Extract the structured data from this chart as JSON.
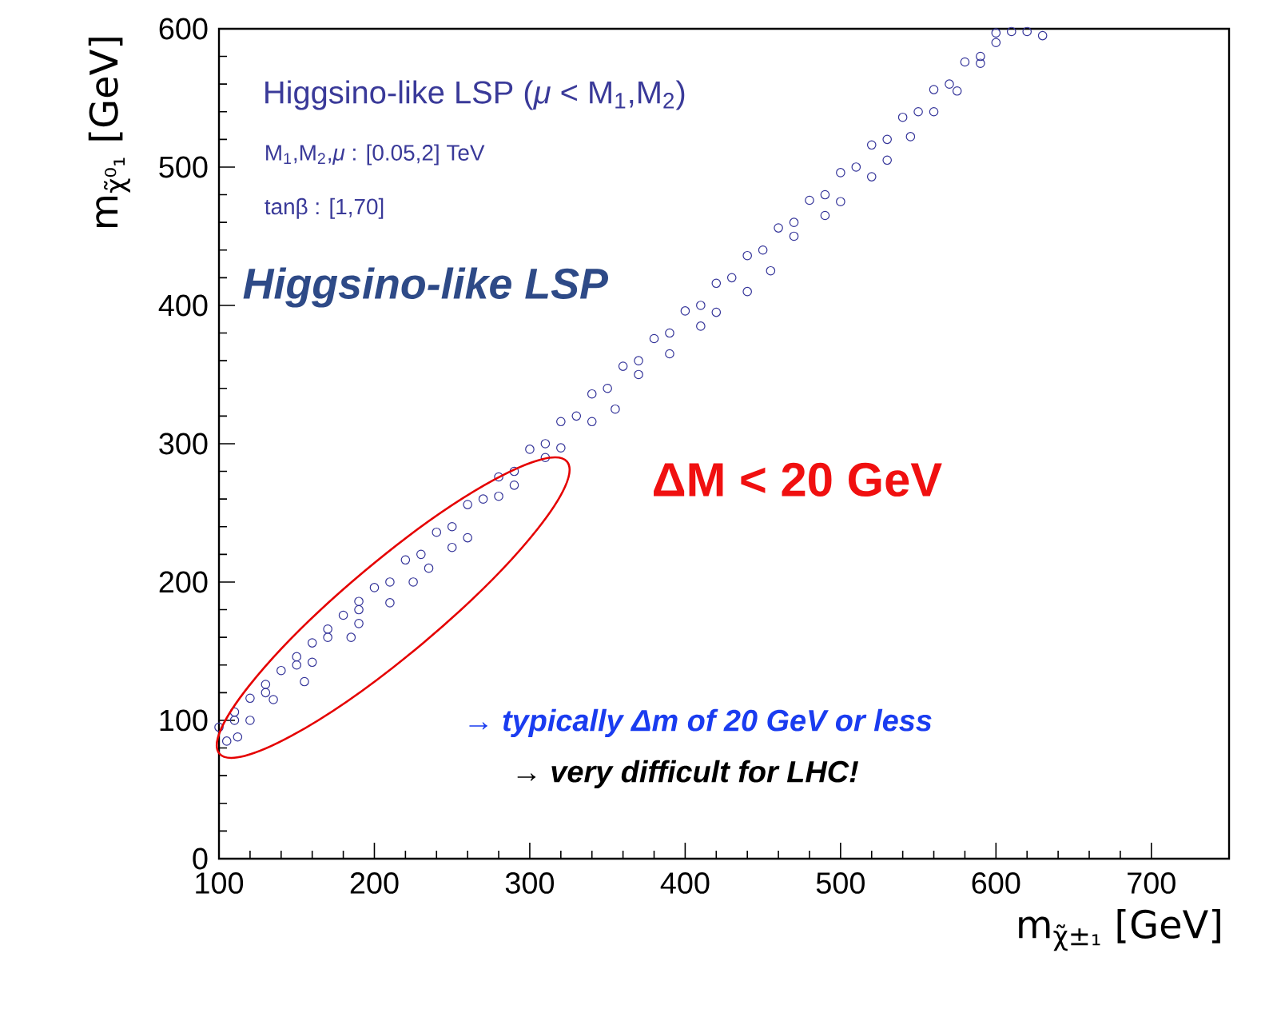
{
  "chart_data": {
    "type": "scatter",
    "xlabel": "m$_{χ̃±₁}$ [GeV]",
    "ylabel": "m$_{χ̃⁰₁}$ [GeV]",
    "x": [
      100,
      110,
      120,
      130,
      140,
      150,
      160,
      170,
      180,
      190,
      200,
      220,
      240,
      260,
      280,
      300,
      320,
      340,
      360,
      380,
      400,
      420,
      440,
      460,
      480,
      500,
      520,
      540,
      560,
      580,
      600,
      110,
      130,
      150,
      170,
      190,
      210,
      230,
      250,
      270,
      290,
      310,
      330,
      350,
      370,
      390,
      410,
      430,
      450,
      470,
      490,
      510,
      530,
      550,
      570,
      590,
      105,
      112,
      120,
      135,
      155,
      160,
      185,
      190,
      210,
      225,
      235,
      250,
      260,
      280,
      290,
      310,
      320,
      340,
      355,
      370,
      390,
      410,
      420,
      440,
      455,
      470,
      490,
      500,
      520,
      530,
      545,
      560,
      575,
      590,
      600,
      610,
      620,
      630
    ],
    "values": [
      95,
      106,
      116,
      126,
      136,
      146,
      156,
      166,
      176,
      186,
      196,
      216,
      236,
      256,
      276,
      296,
      316,
      336,
      356,
      376,
      396,
      416,
      436,
      456,
      476,
      496,
      516,
      536,
      556,
      576,
      597,
      100,
      120,
      140,
      160,
      180,
      200,
      220,
      240,
      260,
      280,
      300,
      320,
      340,
      360,
      380,
      400,
      420,
      440,
      460,
      480,
      500,
      520,
      540,
      560,
      580,
      85,
      88,
      100,
      115,
      128,
      142,
      160,
      170,
      185,
      200,
      210,
      225,
      232,
      262,
      270,
      290,
      297,
      316,
      325,
      350,
      365,
      385,
      395,
      410,
      425,
      450,
      465,
      475,
      493,
      505,
      522,
      540,
      555,
      575,
      590,
      598,
      598,
      595
    ],
    "color": "#333399",
    "marker": "circle",
    "xlim": [
      100,
      750
    ],
    "ylim": [
      0,
      600
    ],
    "xticks": [
      100,
      200,
      300,
      400,
      500,
      600,
      700
    ],
    "yticks": [
      0,
      100,
      200,
      300,
      400,
      500,
      600
    ],
    "annotations": [
      "Higgsino-like LSP (*μ* < M$_{1}$,M$_{2}$)",
      "M$_{1}$,M$_{2}$,*μ* : [0.05,2] TeV",
      "tanβ : [1,70]",
      "Higgsino-like LSP",
      "ΔM < 20 GeV",
      "→ typically Δm of 20 GeV or less",
      "→ very difficult for LHC!"
    ]
  }
}
